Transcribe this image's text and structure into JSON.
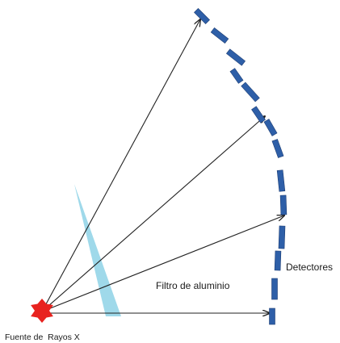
{
  "labels": {
    "detectors": "Detectores",
    "filter": "Filtro de aluminio",
    "source": "Fuente de  Rayos X"
  },
  "colors": {
    "detector": "#2e5fa8",
    "detector_edge": "#1f3f75",
    "filter": "#9fd9ea",
    "source": "#e8231f",
    "ray": "#222222"
  },
  "icons": {
    "source": "star-burst-icon",
    "detector": "detector-block-icon"
  }
}
